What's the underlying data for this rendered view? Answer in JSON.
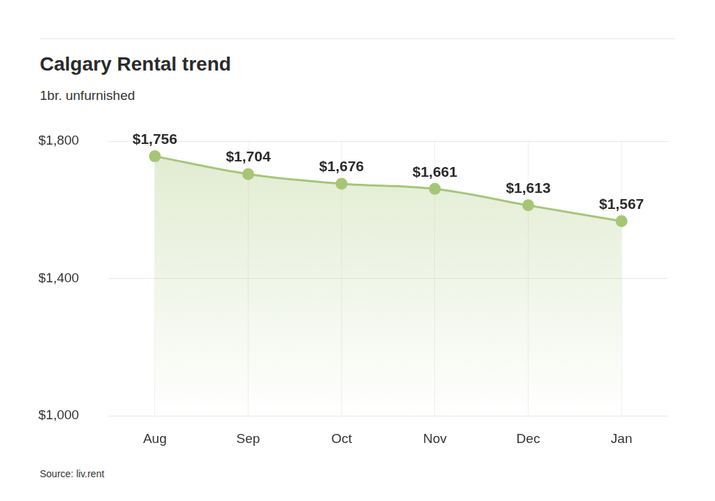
{
  "chart_data": {
    "type": "line",
    "title": "Calgary Rental trend",
    "subtitle": "1br. unfurnished",
    "source": "Source: liv.rent",
    "categories": [
      "Aug",
      "Sep",
      "Oct",
      "Nov",
      "Dec",
      "Jan"
    ],
    "values": [
      1756,
      1704,
      1676,
      1661,
      1613,
      1567
    ],
    "value_labels": [
      "$1,756",
      "$1,704",
      "$1,676",
      "$1,661",
      "$1,613",
      "$1,567"
    ],
    "color": "#a6c676",
    "ylim": [
      1000,
      1800
    ],
    "yticks": [
      {
        "value": 1000,
        "label": "$1,000"
      },
      {
        "value": 1400,
        "label": "$1,400"
      },
      {
        "value": 1800,
        "label": "$1,800"
      }
    ],
    "grid": true,
    "data_labels": true,
    "marker": "circle"
  }
}
